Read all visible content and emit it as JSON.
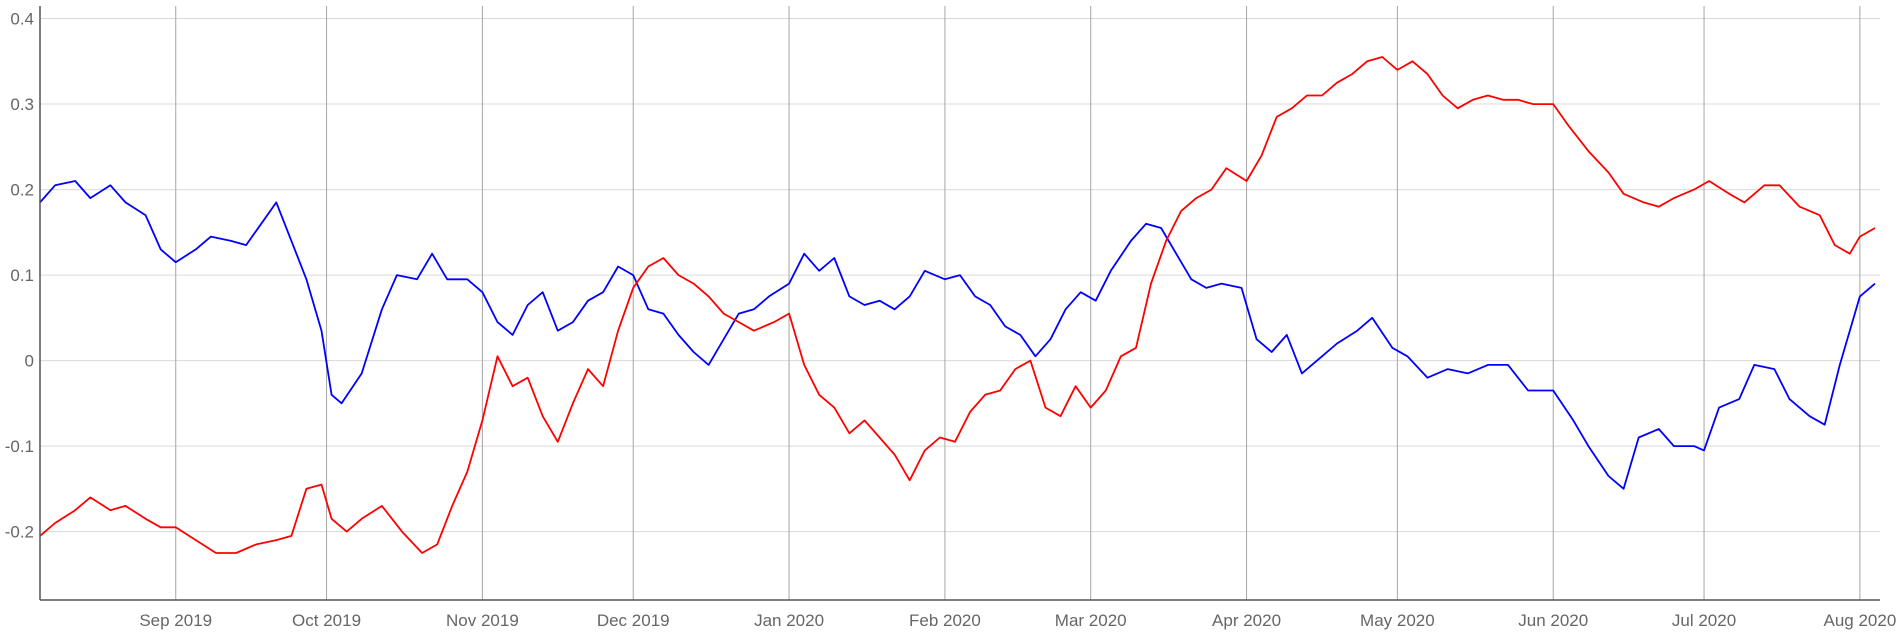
{
  "chart_data": {
    "type": "line",
    "title": "",
    "xlabel": "",
    "ylabel": "",
    "x_range": [
      "2019-08-05",
      "2020-08-05"
    ],
    "ylim": [
      -0.28,
      0.41
    ],
    "grid": true,
    "legend": "none",
    "x_ticks": [
      {
        "date": "2019-09-01",
        "label": "Sep 2019"
      },
      {
        "date": "2019-10-01",
        "label": "Oct 2019"
      },
      {
        "date": "2019-11-01",
        "label": "Nov 2019"
      },
      {
        "date": "2019-12-01",
        "label": "Dec 2019"
      },
      {
        "date": "2020-01-01",
        "label": "Jan 2020"
      },
      {
        "date": "2020-02-01",
        "label": "Feb 2020"
      },
      {
        "date": "2020-03-01",
        "label": "Mar 2020"
      },
      {
        "date": "2020-04-01",
        "label": "Apr 2020"
      },
      {
        "date": "2020-05-01",
        "label": "May 2020"
      },
      {
        "date": "2020-06-01",
        "label": "Jun 2020"
      },
      {
        "date": "2020-07-01",
        "label": "Jul 2020"
      },
      {
        "date": "2020-08-01",
        "label": "Aug 2020"
      }
    ],
    "y_ticks": [
      {
        "value": 0.4,
        "label": "0.4"
      },
      {
        "value": 0.3,
        "label": "0.3"
      },
      {
        "value": 0.2,
        "label": "0.2"
      },
      {
        "value": 0.1,
        "label": "0.1"
      },
      {
        "value": 0,
        "label": "0"
      },
      {
        "value": -0.1,
        "label": "-0.1"
      },
      {
        "value": -0.2,
        "label": "-0.2"
      }
    ],
    "series": [
      {
        "color": "#0000ff",
        "points": [
          [
            "2019-08-05",
            0.185
          ],
          [
            "2019-08-08",
            0.205
          ],
          [
            "2019-08-12",
            0.21
          ],
          [
            "2019-08-15",
            0.19
          ],
          [
            "2019-08-19",
            0.205
          ],
          [
            "2019-08-22",
            0.185
          ],
          [
            "2019-08-26",
            0.17
          ],
          [
            "2019-08-29",
            0.13
          ],
          [
            "2019-09-01",
            0.115
          ],
          [
            "2019-09-05",
            0.13
          ],
          [
            "2019-09-08",
            0.145
          ],
          [
            "2019-09-12",
            0.14
          ],
          [
            "2019-09-15",
            0.135
          ],
          [
            "2019-09-18",
            0.16
          ],
          [
            "2019-09-21",
            0.185
          ],
          [
            "2019-09-24",
            0.14
          ],
          [
            "2019-09-27",
            0.095
          ],
          [
            "2019-09-30",
            0.035
          ],
          [
            "2019-10-02",
            -0.04
          ],
          [
            "2019-10-04",
            -0.05
          ],
          [
            "2019-10-08",
            -0.015
          ],
          [
            "2019-10-12",
            0.06
          ],
          [
            "2019-10-15",
            0.1
          ],
          [
            "2019-10-19",
            0.095
          ],
          [
            "2019-10-22",
            0.125
          ],
          [
            "2019-10-25",
            0.095
          ],
          [
            "2019-10-29",
            0.095
          ],
          [
            "2019-11-01",
            0.08
          ],
          [
            "2019-11-04",
            0.045
          ],
          [
            "2019-11-07",
            0.03
          ],
          [
            "2019-11-10",
            0.065
          ],
          [
            "2019-11-13",
            0.08
          ],
          [
            "2019-11-16",
            0.035
          ],
          [
            "2019-11-19",
            0.045
          ],
          [
            "2019-11-22",
            0.07
          ],
          [
            "2019-11-25",
            0.08
          ],
          [
            "2019-11-28",
            0.11
          ],
          [
            "2019-12-01",
            0.1
          ],
          [
            "2019-12-04",
            0.06
          ],
          [
            "2019-12-07",
            0.055
          ],
          [
            "2019-12-10",
            0.03
          ],
          [
            "2019-12-13",
            0.01
          ],
          [
            "2019-12-16",
            -0.005
          ],
          [
            "2019-12-19",
            0.025
          ],
          [
            "2019-12-22",
            0.055
          ],
          [
            "2019-12-25",
            0.06
          ],
          [
            "2019-12-28",
            0.075
          ],
          [
            "2020-01-01",
            0.09
          ],
          [
            "2020-01-04",
            0.125
          ],
          [
            "2020-01-07",
            0.105
          ],
          [
            "2020-01-10",
            0.12
          ],
          [
            "2020-01-13",
            0.075
          ],
          [
            "2020-01-16",
            0.065
          ],
          [
            "2020-01-19",
            0.07
          ],
          [
            "2020-01-22",
            0.06
          ],
          [
            "2020-01-25",
            0.075
          ],
          [
            "2020-01-28",
            0.105
          ],
          [
            "2020-02-01",
            0.095
          ],
          [
            "2020-02-04",
            0.1
          ],
          [
            "2020-02-07",
            0.075
          ],
          [
            "2020-02-10",
            0.065
          ],
          [
            "2020-02-13",
            0.04
          ],
          [
            "2020-02-16",
            0.03
          ],
          [
            "2020-02-19",
            0.005
          ],
          [
            "2020-02-22",
            0.025
          ],
          [
            "2020-02-25",
            0.06
          ],
          [
            "2020-02-28",
            0.08
          ],
          [
            "2020-03-02",
            0.07
          ],
          [
            "2020-03-05",
            0.105
          ],
          [
            "2020-03-09",
            0.14
          ],
          [
            "2020-03-12",
            0.16
          ],
          [
            "2020-03-15",
            0.155
          ],
          [
            "2020-03-18",
            0.125
          ],
          [
            "2020-03-21",
            0.095
          ],
          [
            "2020-03-24",
            0.085
          ],
          [
            "2020-03-27",
            0.09
          ],
          [
            "2020-03-31",
            0.085
          ],
          [
            "2020-04-03",
            0.025
          ],
          [
            "2020-04-06",
            0.01
          ],
          [
            "2020-04-09",
            0.03
          ],
          [
            "2020-04-12",
            -0.015
          ],
          [
            "2020-04-16",
            0.005
          ],
          [
            "2020-04-19",
            0.02
          ],
          [
            "2020-04-23",
            0.035
          ],
          [
            "2020-04-26",
            0.05
          ],
          [
            "2020-04-30",
            0.015
          ],
          [
            "2020-05-03",
            0.005
          ],
          [
            "2020-05-07",
            -0.02
          ],
          [
            "2020-05-11",
            -0.01
          ],
          [
            "2020-05-15",
            -0.015
          ],
          [
            "2020-05-19",
            -0.005
          ],
          [
            "2020-05-23",
            -0.005
          ],
          [
            "2020-05-27",
            -0.035
          ],
          [
            "2020-06-01",
            -0.035
          ],
          [
            "2020-06-05",
            -0.07
          ],
          [
            "2020-06-08",
            -0.1
          ],
          [
            "2020-06-12",
            -0.135
          ],
          [
            "2020-06-15",
            -0.15
          ],
          [
            "2020-06-18",
            -0.09
          ],
          [
            "2020-06-22",
            -0.08
          ],
          [
            "2020-06-25",
            -0.1
          ],
          [
            "2020-06-29",
            -0.1
          ],
          [
            "2020-07-01",
            -0.105
          ],
          [
            "2020-07-04",
            -0.055
          ],
          [
            "2020-07-08",
            -0.045
          ],
          [
            "2020-07-11",
            -0.005
          ],
          [
            "2020-07-15",
            -0.01
          ],
          [
            "2020-07-18",
            -0.045
          ],
          [
            "2020-07-22",
            -0.065
          ],
          [
            "2020-07-25",
            -0.075
          ],
          [
            "2020-07-28",
            -0.005
          ],
          [
            "2020-08-01",
            0.075
          ],
          [
            "2020-08-04",
            0.09
          ]
        ]
      },
      {
        "color": "#ff0000",
        "points": [
          [
            "2019-08-05",
            -0.205
          ],
          [
            "2019-08-08",
            -0.19
          ],
          [
            "2019-08-12",
            -0.175
          ],
          [
            "2019-08-15",
            -0.16
          ],
          [
            "2019-08-19",
            -0.175
          ],
          [
            "2019-08-22",
            -0.17
          ],
          [
            "2019-08-26",
            -0.185
          ],
          [
            "2019-08-29",
            -0.195
          ],
          [
            "2019-09-01",
            -0.195
          ],
          [
            "2019-09-05",
            -0.21
          ],
          [
            "2019-09-09",
            -0.225
          ],
          [
            "2019-09-13",
            -0.225
          ],
          [
            "2019-09-17",
            -0.215
          ],
          [
            "2019-09-21",
            -0.21
          ],
          [
            "2019-09-24",
            -0.205
          ],
          [
            "2019-09-27",
            -0.15
          ],
          [
            "2019-09-30",
            -0.145
          ],
          [
            "2019-10-02",
            -0.185
          ],
          [
            "2019-10-05",
            -0.2
          ],
          [
            "2019-10-08",
            -0.185
          ],
          [
            "2019-10-12",
            -0.17
          ],
          [
            "2019-10-16",
            -0.2
          ],
          [
            "2019-10-20",
            -0.225
          ],
          [
            "2019-10-23",
            -0.215
          ],
          [
            "2019-10-26",
            -0.17
          ],
          [
            "2019-10-29",
            -0.13
          ],
          [
            "2019-11-01",
            -0.07
          ],
          [
            "2019-11-04",
            0.005
          ],
          [
            "2019-11-07",
            -0.03
          ],
          [
            "2019-11-10",
            -0.02
          ],
          [
            "2019-11-13",
            -0.065
          ],
          [
            "2019-11-16",
            -0.095
          ],
          [
            "2019-11-19",
            -0.05
          ],
          [
            "2019-11-22",
            -0.01
          ],
          [
            "2019-11-25",
            -0.03
          ],
          [
            "2019-11-28",
            0.035
          ],
          [
            "2019-12-01",
            0.085
          ],
          [
            "2019-12-04",
            0.11
          ],
          [
            "2019-12-07",
            0.12
          ],
          [
            "2019-12-10",
            0.1
          ],
          [
            "2019-12-13",
            0.09
          ],
          [
            "2019-12-16",
            0.075
          ],
          [
            "2019-12-19",
            0.055
          ],
          [
            "2019-12-22",
            0.045
          ],
          [
            "2019-12-25",
            0.035
          ],
          [
            "2019-12-29",
            0.045
          ],
          [
            "2020-01-01",
            0.055
          ],
          [
            "2020-01-04",
            -0.005
          ],
          [
            "2020-01-07",
            -0.04
          ],
          [
            "2020-01-10",
            -0.055
          ],
          [
            "2020-01-13",
            -0.085
          ],
          [
            "2020-01-16",
            -0.07
          ],
          [
            "2020-01-19",
            -0.09
          ],
          [
            "2020-01-22",
            -0.11
          ],
          [
            "2020-01-25",
            -0.14
          ],
          [
            "2020-01-28",
            -0.105
          ],
          [
            "2020-01-31",
            -0.09
          ],
          [
            "2020-02-03",
            -0.095
          ],
          [
            "2020-02-06",
            -0.06
          ],
          [
            "2020-02-09",
            -0.04
          ],
          [
            "2020-02-12",
            -0.035
          ],
          [
            "2020-02-15",
            -0.01
          ],
          [
            "2020-02-18",
            0.0
          ],
          [
            "2020-02-21",
            -0.055
          ],
          [
            "2020-02-24",
            -0.065
          ],
          [
            "2020-02-27",
            -0.03
          ],
          [
            "2020-03-01",
            -0.055
          ],
          [
            "2020-03-04",
            -0.035
          ],
          [
            "2020-03-07",
            0.005
          ],
          [
            "2020-03-10",
            0.015
          ],
          [
            "2020-03-13",
            0.09
          ],
          [
            "2020-03-16",
            0.14
          ],
          [
            "2020-03-19",
            0.175
          ],
          [
            "2020-03-22",
            0.19
          ],
          [
            "2020-03-25",
            0.2
          ],
          [
            "2020-03-28",
            0.225
          ],
          [
            "2020-04-01",
            0.21
          ],
          [
            "2020-04-04",
            0.24
          ],
          [
            "2020-04-07",
            0.285
          ],
          [
            "2020-04-10",
            0.295
          ],
          [
            "2020-04-13",
            0.31
          ],
          [
            "2020-04-16",
            0.31
          ],
          [
            "2020-04-19",
            0.325
          ],
          [
            "2020-04-22",
            0.335
          ],
          [
            "2020-04-25",
            0.35
          ],
          [
            "2020-04-28",
            0.355
          ],
          [
            "2020-05-01",
            0.34
          ],
          [
            "2020-05-04",
            0.35
          ],
          [
            "2020-05-07",
            0.335
          ],
          [
            "2020-05-10",
            0.31
          ],
          [
            "2020-05-13",
            0.295
          ],
          [
            "2020-05-16",
            0.305
          ],
          [
            "2020-05-19",
            0.31
          ],
          [
            "2020-05-22",
            0.305
          ],
          [
            "2020-05-25",
            0.305
          ],
          [
            "2020-05-28",
            0.3
          ],
          [
            "2020-06-01",
            0.3
          ],
          [
            "2020-06-04",
            0.275
          ],
          [
            "2020-06-08",
            0.245
          ],
          [
            "2020-06-12",
            0.22
          ],
          [
            "2020-06-15",
            0.195
          ],
          [
            "2020-06-19",
            0.185
          ],
          [
            "2020-06-22",
            0.18
          ],
          [
            "2020-06-25",
            0.19
          ],
          [
            "2020-06-29",
            0.2
          ],
          [
            "2020-07-02",
            0.21
          ],
          [
            "2020-07-06",
            0.195
          ],
          [
            "2020-07-09",
            0.185
          ],
          [
            "2020-07-13",
            0.205
          ],
          [
            "2020-07-16",
            0.205
          ],
          [
            "2020-07-20",
            0.18
          ],
          [
            "2020-07-24",
            0.17
          ],
          [
            "2020-07-27",
            0.135
          ],
          [
            "2020-07-30",
            0.125
          ],
          [
            "2020-08-01",
            0.145
          ],
          [
            "2020-08-04",
            0.155
          ]
        ]
      }
    ]
  }
}
